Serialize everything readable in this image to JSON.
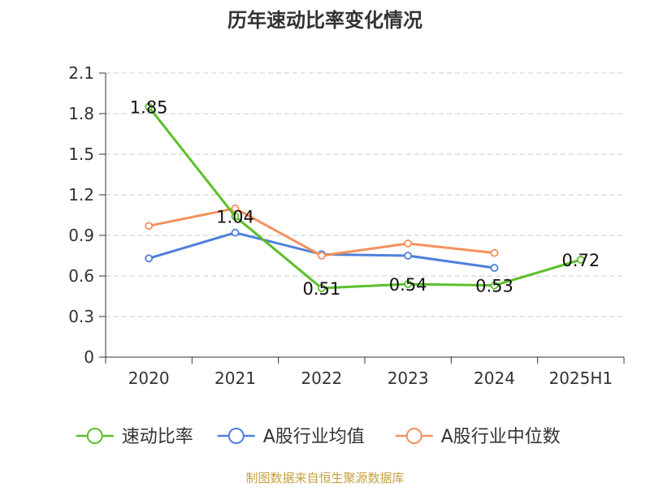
{
  "chart_data": {
    "type": "line",
    "title": "历年速动比率变化情况",
    "categories": [
      "2020",
      "2021",
      "2022",
      "2023",
      "2024",
      "2025H1"
    ],
    "ylim": [
      0,
      2.1
    ],
    "yticks": [
      "0",
      "0.3",
      "0.6",
      "0.9",
      "1.2",
      "1.5",
      "1.8",
      "2.1"
    ],
    "grid": true,
    "legend_position": "bottom",
    "series": [
      {
        "name": "速动比率",
        "color": "#5cbf2a",
        "values": [
          1.85,
          1.04,
          0.51,
          0.54,
          0.53,
          0.72
        ],
        "labels": [
          "1.85",
          "1.04",
          "0.51",
          "0.54",
          "0.53",
          "0.72"
        ]
      },
      {
        "name": "A股行业均值",
        "color": "#4e7fdb",
        "values": [
          0.73,
          0.92,
          0.76,
          0.75,
          0.66,
          null
        ]
      },
      {
        "name": "A股行业中位数",
        "color": "#f5905c",
        "values": [
          0.97,
          1.1,
          0.75,
          0.84,
          0.77,
          null
        ]
      }
    ]
  },
  "source_text": "制图数据来自恒生聚源数据库"
}
